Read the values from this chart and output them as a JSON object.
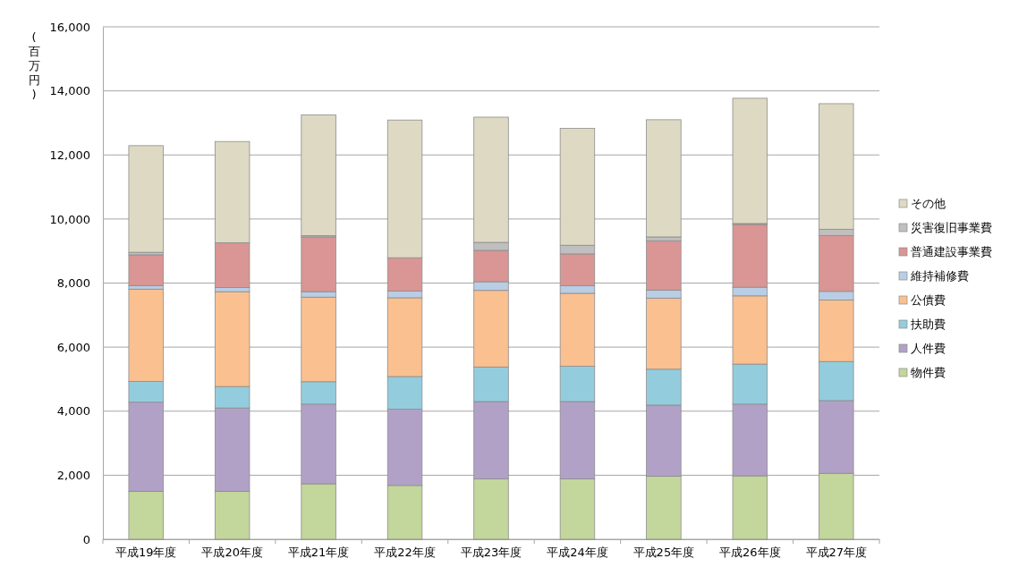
{
  "chart_data": {
    "type": "bar",
    "stacked": true,
    "ylabel": "(百万円)",
    "categories": [
      "平成19年度",
      "平成20年度",
      "平成21年度",
      "平成22年度",
      "平成23年度",
      "平成24年度",
      "平成25年度",
      "平成26年度",
      "平成27年度"
    ],
    "series": [
      {
        "name": "物件費",
        "color": "#c3d69b",
        "values": [
          1500,
          1500,
          1730,
          1680,
          1890,
          1890,
          1970,
          1980,
          2060
        ]
      },
      {
        "name": "人件費",
        "color": "#b2a1c7",
        "values": [
          2780,
          2600,
          2490,
          2380,
          2410,
          2410,
          2220,
          2240,
          2270
        ]
      },
      {
        "name": "扶助費",
        "color": "#93cddd",
        "values": [
          650,
          670,
          700,
          1020,
          1080,
          1100,
          1120,
          1250,
          1220
        ]
      },
      {
        "name": "公債費",
        "color": "#fac090",
        "values": [
          2880,
          2960,
          2640,
          2460,
          2390,
          2280,
          2220,
          2130,
          1920
        ]
      },
      {
        "name": "維持補修費",
        "color": "#b9cde5",
        "values": [
          110,
          130,
          170,
          210,
          270,
          240,
          250,
          270,
          270
        ]
      },
      {
        "name": "普通建設事業費",
        "color": "#d99694",
        "values": [
          960,
          1400,
          1710,
          1040,
          980,
          990,
          1540,
          1960,
          1740
        ]
      },
      {
        "name": "災害復旧事業費",
        "color": "#bfbfbf",
        "values": [
          80,
          0,
          40,
          0,
          250,
          270,
          120,
          30,
          200
        ]
      },
      {
        "name": "その他",
        "color": "#ddd9c3",
        "values": [
          3330,
          3160,
          3770,
          4300,
          3910,
          3650,
          3660,
          3910,
          3920
        ]
      }
    ],
    "ylim": [
      0,
      16000
    ],
    "yticks": [
      {
        "value": 0,
        "label": "0"
      },
      {
        "value": 2000,
        "label": "2,000"
      },
      {
        "value": 4000,
        "label": "4,000"
      },
      {
        "value": 6000,
        "label": "6,000"
      },
      {
        "value": 8000,
        "label": "8,000"
      },
      {
        "value": 10000,
        "label": "10,000"
      },
      {
        "value": 12000,
        "label": "12,000"
      },
      {
        "value": 14000,
        "label": "14,000"
      },
      {
        "value": 16000,
        "label": "16,000"
      }
    ],
    "grid": "y",
    "legend": "right"
  }
}
